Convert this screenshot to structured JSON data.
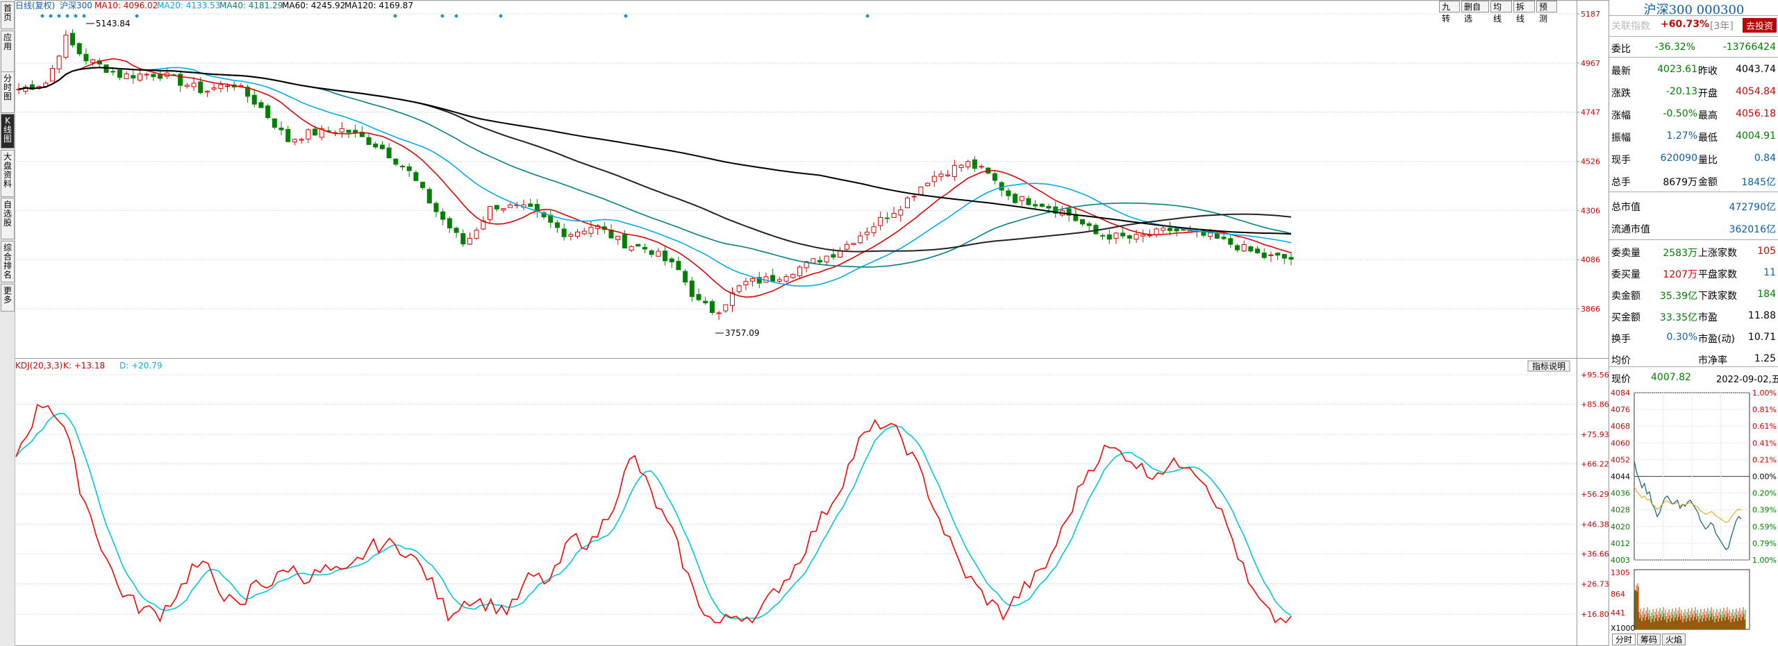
{
  "left_tabs": [
    {
      "label": "首页"
    },
    {
      "label": "应用"
    },
    {
      "label": "分时图"
    },
    {
      "label": "K线图"
    },
    {
      "label": "大盘资料"
    },
    {
      "label": "自选股"
    },
    {
      "label": "综合排名"
    },
    {
      "label": "更多"
    }
  ],
  "toolbar": [
    "九转",
    "删自选",
    "均线",
    "拆线",
    "预测"
  ],
  "legend": {
    "period": "日线(复权)",
    "name": "沪深300",
    "ma10": "MA10: 4096.02",
    "ma20": "MA20: 4133.53",
    "ma40": "MA40: 4181.29",
    "ma60": "MA60: 4245.92",
    "ma120": "MA120: 4169.87"
  },
  "annotations": {
    "high": "5143.84",
    "low": "3757.09"
  },
  "price_axis": [
    "5187",
    "4967",
    "4747",
    "4526",
    "4306",
    "4086",
    "3866"
  ],
  "kdj": {
    "label": "KDJ(20,3,3)",
    "k": "K: +13.18",
    "d": "D: +20.79",
    "help_button": "指标说明",
    "axis": [
      "+95.56",
      "+85.86",
      "+75.93",
      "+66.22",
      "+56.29",
      "+46.38",
      "+36.66",
      "+26.73",
      "+16.80"
    ]
  },
  "colors": {
    "up": "#e00000",
    "down": "#008000",
    "ma10": "#e00000",
    "ma20": "#00aaee",
    "ma40": "#008080",
    "ma60": "#000000",
    "ma120": "#000000",
    "k": "#ff0000",
    "d": "#00c8d8"
  },
  "panel": {
    "title": "沪深300 000300",
    "assoc": {
      "label": "关联指数",
      "value": "+60.73%",
      "suffix": "[3年]",
      "button": "去投资"
    },
    "weibi": {
      "label": "委比",
      "pct": "-36.32%",
      "num": "-13766424"
    },
    "rows": [
      {
        "l1": "最新",
        "v1": "4023.61",
        "l2": "昨收",
        "v2": "4043.74"
      },
      {
        "l1": "涨跌",
        "v1": "-20.13",
        "l2": "开盘",
        "v2": "4054.84"
      },
      {
        "l1": "涨幅",
        "v1": "-0.50%",
        "l2": "最高",
        "v2": "4056.18"
      },
      {
        "l1": "振幅",
        "v1": "1.27%",
        "l2": "最低",
        "v2": "4004.91"
      },
      {
        "l1": "现手",
        "v1": "620090",
        "l2": "量比",
        "v2": "0.84"
      },
      {
        "l1": "总手",
        "v1": "8679万",
        "l2": "金额",
        "v2": "1845亿"
      }
    ],
    "mv": [
      {
        "label": "总市值",
        "value": "472790亿"
      },
      {
        "label": "流通市值",
        "value": "362016亿"
      }
    ],
    "rows2": [
      {
        "l1": "委卖量",
        "v1": "2583万",
        "l2": "上涨家数",
        "v2": "105"
      },
      {
        "l1": "委买量",
        "v1": "1207万",
        "l2": "平盘家数",
        "v2": "11"
      },
      {
        "l1": "卖金额",
        "v1": "35.39亿",
        "l2": "下跌家数",
        "v2": "184"
      },
      {
        "l1": "买金额",
        "v1": "33.35亿",
        "l2": "市盈",
        "v2": "11.88"
      },
      {
        "l1": "换手",
        "v1": "0.30%",
        "l2": "市盈(动)",
        "v2": "10.71"
      },
      {
        "l1": "均价",
        "v1": "",
        "l2": "市净率",
        "v2": "1.25"
      }
    ],
    "mini": {
      "label": "现价",
      "price": "4007.82",
      "date": "2022-09-02,五",
      "left_axis": [
        "4084",
        "4076",
        "4068",
        "4060",
        "4052",
        "4044",
        "4036",
        "4028",
        "4020",
        "4012",
        "4003"
      ],
      "right_axis": [
        "1.00%",
        "0.81%",
        "0.61%",
        "0.41%",
        "0.21%",
        "0.00%",
        "0.20%",
        "0.39%",
        "0.59%",
        "0.79%",
        "1.00%"
      ],
      "vol_axis": [
        "1305",
        "864",
        "441",
        "X1000"
      ]
    },
    "bottom_tabs": [
      "分时",
      "筹码",
      "火焰"
    ]
  }
}
